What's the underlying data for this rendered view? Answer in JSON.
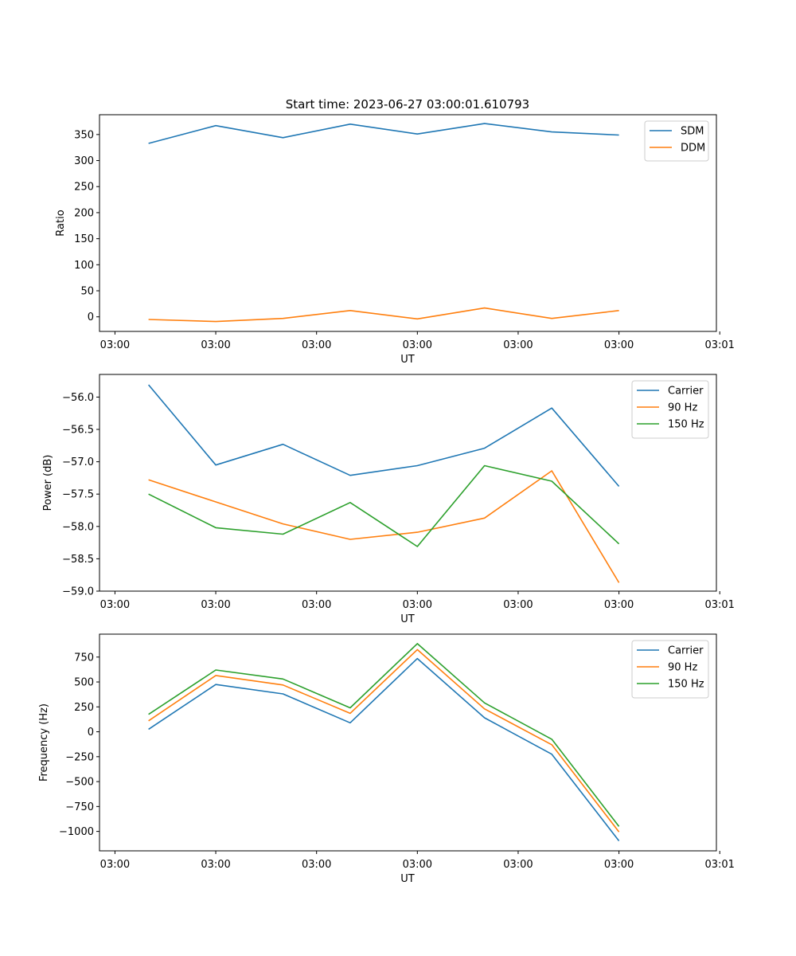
{
  "figure": {
    "title": "Start time: 2023-06-27 03:00:01.610793"
  },
  "chart_data": [
    {
      "type": "line",
      "ylabel": "Ratio",
      "xlabel": "UT",
      "x_ticks": [
        "03:00",
        "03:00",
        "03:00",
        "03:00",
        "03:00",
        "03:00",
        "03:01"
      ],
      "x": [
        1,
        2,
        3,
        4,
        5,
        6,
        7,
        8
      ],
      "xlim": [
        0.27,
        9.45
      ],
      "ylim": [
        -28,
        388
      ],
      "yticks": [
        0,
        50,
        100,
        150,
        200,
        250,
        300,
        350
      ],
      "legend_position": "top-right",
      "series": [
        {
          "name": "SDM",
          "color": "#1f77b4",
          "values": [
            333,
            367,
            344,
            370,
            351,
            371,
            355,
            349
          ]
        },
        {
          "name": "DDM",
          "color": "#ff7f0e",
          "values": [
            -5,
            -9,
            -3,
            12,
            -4,
            17,
            -3,
            12
          ]
        }
      ]
    },
    {
      "type": "line",
      "ylabel": "Power (dB)",
      "xlabel": "UT",
      "x_ticks": [
        "03:00",
        "03:00",
        "03:00",
        "03:00",
        "03:00",
        "03:00",
        "03:01"
      ],
      "x": [
        1,
        2,
        3,
        4,
        5,
        6,
        7,
        8
      ],
      "xlim": [
        0.27,
        9.45
      ],
      "ylim": [
        -59.0,
        -55.65
      ],
      "yticks": [
        -59.0,
        -58.5,
        -58.0,
        -57.5,
        -57.0,
        -56.5,
        -56.0
      ],
      "legend_position": "top-right",
      "series": [
        {
          "name": "Carrier",
          "color": "#1f77b4",
          "values": [
            -55.81,
            -57.05,
            -56.73,
            -57.21,
            -57.06,
            -56.79,
            -56.17,
            -57.38
          ]
        },
        {
          "name": "90 Hz",
          "color": "#ff7f0e",
          "values": [
            -57.28,
            -57.62,
            -57.96,
            -58.2,
            -58.09,
            -57.87,
            -57.14,
            -58.87
          ]
        },
        {
          "name": "150 Hz",
          "color": "#2ca02c",
          "values": [
            -57.5,
            -58.02,
            -58.12,
            -57.63,
            -58.31,
            -57.06,
            -57.3,
            -58.27
          ]
        }
      ]
    },
    {
      "type": "line",
      "ylabel": "Frequency (Hz)",
      "xlabel": "UT",
      "x_ticks": [
        "03:00",
        "03:00",
        "03:00",
        "03:00",
        "03:00",
        "03:00",
        "03:01"
      ],
      "x": [
        1,
        2,
        3,
        4,
        5,
        6,
        7,
        8
      ],
      "xlim": [
        0.27,
        9.45
      ],
      "ylim": [
        -1195,
        980
      ],
      "yticks": [
        -1000,
        -750,
        -500,
        -250,
        0,
        250,
        500,
        750
      ],
      "legend_position": "top-right",
      "series": [
        {
          "name": "Carrier",
          "color": "#1f77b4",
          "values": [
            25,
            475,
            380,
            90,
            735,
            140,
            -225,
            -1095
          ]
        },
        {
          "name": "90 Hz",
          "color": "#ff7f0e",
          "values": [
            110,
            565,
            470,
            185,
            825,
            230,
            -130,
            -1005
          ]
        },
        {
          "name": "150 Hz",
          "color": "#2ca02c",
          "values": [
            175,
            620,
            530,
            240,
            885,
            290,
            -75,
            -950
          ]
        }
      ]
    }
  ]
}
